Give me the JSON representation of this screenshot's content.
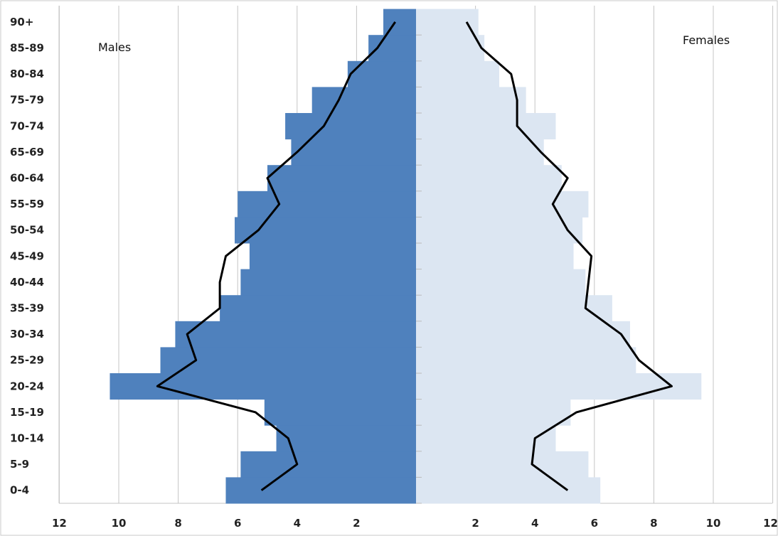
{
  "chart_data": {
    "type": "bar",
    "orientation": "horizontal",
    "layout": "population-pyramid",
    "categories": [
      "0-4",
      "5-9",
      "10-14",
      "15-19",
      "20-24",
      "25-29",
      "30-34",
      "35-39",
      "40-44",
      "45-49",
      "50-54",
      "55-59",
      "60-64",
      "65-69",
      "70-74",
      "75-79",
      "80-84",
      "85-89",
      "90+"
    ],
    "series": [
      {
        "name": "Males",
        "kind": "bar",
        "side": "left",
        "color": "#4f81bd",
        "values": [
          6.4,
          5.9,
          4.7,
          5.1,
          10.3,
          8.6,
          8.1,
          6.6,
          5.9,
          5.6,
          6.1,
          6.0,
          5.0,
          4.2,
          4.4,
          3.5,
          2.3,
          1.6,
          1.1
        ]
      },
      {
        "name": "Females",
        "kind": "bar",
        "side": "right",
        "color": "#dce6f2",
        "values": [
          6.2,
          5.8,
          4.7,
          5.2,
          9.6,
          7.4,
          7.2,
          6.6,
          5.7,
          5.3,
          5.6,
          5.8,
          4.9,
          4.3,
          4.7,
          3.7,
          2.8,
          2.3,
          2.1
        ]
      },
      {
        "kind": "line",
        "side": "left",
        "color": "#000000",
        "values": [
          5.2,
          4.0,
          4.3,
          5.4,
          8.7,
          7.4,
          7.7,
          6.6,
          6.6,
          6.4,
          5.3,
          4.6,
          5.0,
          4.0,
          3.1,
          2.6,
          2.2,
          1.3,
          0.7
        ]
      },
      {
        "kind": "line",
        "side": "right",
        "color": "#000000",
        "values": [
          5.1,
          3.9,
          4.0,
          5.4,
          8.6,
          7.5,
          6.9,
          5.7,
          5.8,
          5.9,
          5.1,
          4.6,
          5.1,
          4.2,
          3.4,
          3.4,
          3.2,
          2.2,
          1.7
        ]
      }
    ],
    "x_tick_labels_left": [
      "12",
      "10",
      "8",
      "6",
      "4",
      "2"
    ],
    "x_tick_labels_right": [
      "2",
      "4",
      "6",
      "8",
      "10",
      "12"
    ],
    "xlim": [
      0,
      12
    ],
    "grid": "vertical",
    "annotations": [
      {
        "text": "Males",
        "position": "top-left"
      },
      {
        "text": "Females",
        "position": "top-right"
      }
    ]
  }
}
